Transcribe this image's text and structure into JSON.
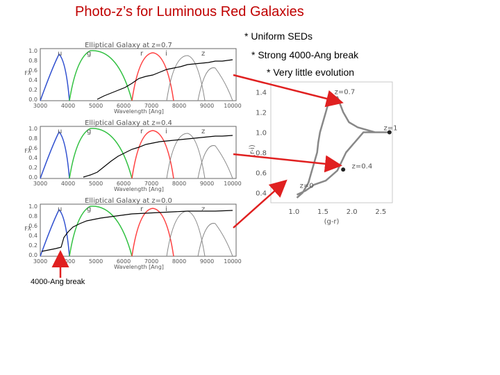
{
  "title": "Photo-z’s for Luminous Red Galaxies",
  "bullets": [
    "* Uniform SEDs",
    "* Strong 4000-Ang break",
    "* Very little evolution"
  ],
  "break_caption": "4000-Ang break",
  "colors": {
    "title": "#c00000",
    "arrow": "#e02020",
    "u": "#3050d0",
    "g": "#30c040",
    "r": "#ff4040",
    "i": "#888888",
    "z": "#888888"
  },
  "sed_panels": [
    {
      "title": "Elliptical Galaxy at z=0.7",
      "z": 0.7,
      "filters": [
        "u",
        "g",
        "r",
        "i",
        "z"
      ]
    },
    {
      "title": "Elliptical Galaxy at z=0.4",
      "z": 0.4,
      "filters": [
        "u",
        "g",
        "r",
        "i",
        "z"
      ]
    },
    {
      "title": "Elliptical Galaxy at z=0.0",
      "z": 0.0,
      "filters": [
        "u",
        "g",
        "r",
        "i",
        "z"
      ]
    }
  ],
  "sed_axes": {
    "xlabel": "Wavelength [Ang]",
    "xticks": [
      "3000",
      "4000",
      "5000",
      "6000",
      "7000",
      "8000",
      "9000",
      "10000"
    ],
    "ylabel": "Fλ",
    "yticks": [
      "1.0",
      "0.8",
      "0.6",
      "0.4",
      "0.2",
      "0.0"
    ]
  },
  "chart_data": {
    "type": "line",
    "xlabel": "(g-r)",
    "ylabel": "(r-i)",
    "xticks": [
      "1.0",
      "1.5",
      "2.0",
      "2.5"
    ],
    "yticks": [
      "1.4",
      "1.2",
      "1.0",
      "0.8",
      "0.6",
      "0.4"
    ],
    "xlim": [
      0.6,
      2.7
    ],
    "ylim": [
      0.3,
      1.5
    ],
    "track": [
      [
        1.05,
        0.35
      ],
      [
        1.15,
        0.4
      ],
      [
        1.25,
        0.5
      ],
      [
        1.3,
        0.6
      ],
      [
        1.35,
        0.7
      ],
      [
        1.4,
        0.8
      ],
      [
        1.42,
        0.9
      ],
      [
        1.45,
        1.0
      ],
      [
        1.5,
        1.1
      ],
      [
        1.55,
        1.2
      ],
      [
        1.6,
        1.3
      ],
      [
        1.75,
        1.35
      ],
      [
        1.85,
        1.2
      ],
      [
        1.95,
        1.1
      ],
      [
        2.1,
        1.05
      ],
      [
        2.4,
        1.0
      ],
      [
        2.65,
        1.0
      ],
      [
        2.2,
        1.0
      ],
      [
        1.9,
        0.8
      ],
      [
        1.75,
        0.62
      ],
      [
        1.55,
        0.52
      ],
      [
        1.35,
        0.48
      ],
      [
        1.2,
        0.42
      ],
      [
        1.05,
        0.38
      ]
    ],
    "labels": [
      {
        "text": "z=0.7",
        "x": 1.7,
        "y": 1.38
      },
      {
        "text": "z=1",
        "x": 2.55,
        "y": 1.02
      },
      {
        "text": "z=0.4",
        "x": 2.0,
        "y": 0.64
      },
      {
        "text": "z=0",
        "x": 1.1,
        "y": 0.45
      }
    ],
    "markers": [
      {
        "x": 1.6,
        "y": 1.33
      },
      {
        "x": 1.85,
        "y": 0.63
      },
      {
        "x": 2.65,
        "y": 1.0
      }
    ]
  }
}
